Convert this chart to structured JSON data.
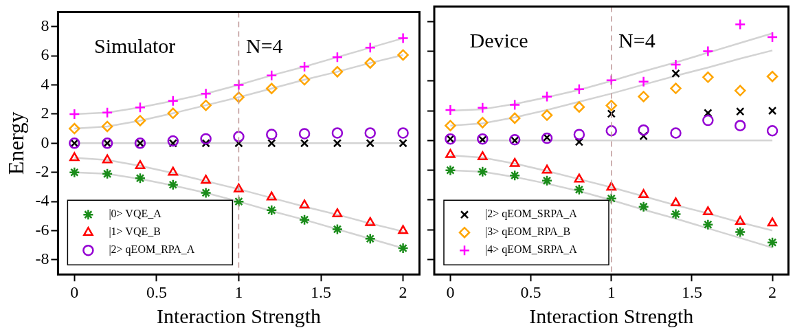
{
  "chart_data": [
    {
      "type": "scatter",
      "xlabel": "Interaction Strength",
      "ylabel": "Energy",
      "annotations": [
        "Simulator",
        "N=4"
      ],
      "x": [
        0,
        0.2,
        0.4,
        0.6,
        0.8,
        1.0,
        1.2,
        1.4,
        1.6,
        1.8,
        2.0
      ],
      "xlim": [
        -0.1,
        2.1
      ],
      "xticks": [
        0,
        0.5,
        1,
        1.5,
        2
      ],
      "ylim": [
        -9,
        9
      ],
      "yticks": [
        -8,
        -6,
        -4,
        -2,
        0,
        2,
        4,
        6,
        8
      ],
      "grid": false,
      "legend": "bottom left",
      "ref_lines": [
        {
          "axis": "x",
          "value": 1,
          "color": "#c09a9a",
          "line_style": "dashed"
        }
      ],
      "series": [
        {
          "type": "line",
          "color": "#d3d3d3",
          "marker": "none",
          "values": [
            2.0,
            2.1,
            2.45,
            2.9,
            3.4,
            4.0,
            4.65,
            5.25,
            5.9,
            6.55,
            7.2
          ]
        },
        {
          "type": "line",
          "color": "#d3d3d3",
          "marker": "none",
          "values": [
            1.0,
            1.15,
            1.55,
            2.05,
            2.6,
            3.15,
            3.75,
            4.35,
            4.9,
            5.5,
            6.05
          ]
        },
        {
          "type": "line",
          "color": "#d3d3d3",
          "marker": "none",
          "values": [
            0,
            0,
            0,
            0,
            0,
            0,
            0,
            0,
            0,
            0,
            0
          ]
        },
        {
          "type": "line",
          "color": "#d3d3d3",
          "marker": "none",
          "values": [
            -1.0,
            -1.15,
            -1.55,
            -2.05,
            -2.6,
            -3.15,
            -3.75,
            -4.35,
            -4.9,
            -5.5,
            -6.05
          ]
        },
        {
          "type": "line",
          "color": "#d3d3d3",
          "marker": "none",
          "values": [
            -2.0,
            -2.1,
            -2.45,
            -2.9,
            -3.4,
            -4.0,
            -4.65,
            -5.25,
            -5.9,
            -6.55,
            -7.2
          ]
        },
        {
          "name": "|0> VQE_A",
          "color": "#1a8c1a",
          "marker": "cross",
          "values": [
            -2.0,
            -2.1,
            -2.4,
            -2.85,
            -3.4,
            -4.0,
            -4.6,
            -5.25,
            -5.9,
            -6.55,
            -7.2
          ]
        },
        {
          "name": "|1> VQE_B",
          "color": "#ff0000",
          "marker": "triangle",
          "values": [
            -1.0,
            -1.15,
            -1.55,
            -2.0,
            -2.55,
            -3.15,
            -3.7,
            -4.25,
            -4.85,
            -5.45,
            -6.0
          ]
        },
        {
          "name": "|2> qEOM_RPA_A",
          "color": "#9400d3",
          "marker": "circle",
          "values": [
            0,
            0,
            0,
            0.15,
            0.3,
            0.45,
            0.6,
            0.65,
            0.7,
            0.7,
            0.7
          ]
        },
        {
          "color": "#000000",
          "marker": "x",
          "values": [
            0,
            0,
            0,
            0,
            0,
            0,
            0,
            0,
            0,
            0,
            0
          ]
        },
        {
          "color": "#ffa500",
          "marker": "diamond",
          "values": [
            1.0,
            1.15,
            1.55,
            2.05,
            2.6,
            3.15,
            3.75,
            4.35,
            4.9,
            5.5,
            6.05
          ]
        },
        {
          "color": "#ff00ff",
          "marker": "plus",
          "values": [
            2.0,
            2.1,
            2.45,
            2.9,
            3.4,
            4.0,
            4.65,
            5.25,
            5.9,
            6.55,
            7.2
          ]
        }
      ]
    },
    {
      "type": "scatter",
      "xlabel": "Interaction Strength",
      "annotations": [
        "Device",
        "N=4"
      ],
      "tick_labels": "x",
      "x": [
        0,
        0.2,
        0.4,
        0.6,
        0.8,
        1.0,
        1.2,
        1.4,
        1.6,
        1.8,
        2.0
      ],
      "xlim": [
        -0.1,
        2.1
      ],
      "xticks": [
        0,
        0.5,
        1,
        1.5,
        2
      ],
      "ylim": [
        -9,
        9
      ],
      "yticks": [
        -8,
        -6,
        -4,
        -2,
        0,
        2,
        4,
        6,
        8
      ],
      "grid": false,
      "legend": "bottom left",
      "ref_lines": [
        {
          "axis": "x",
          "value": 1,
          "color": "#c09a9a",
          "line_style": "dashed"
        }
      ],
      "series": [
        {
          "type": "line",
          "color": "#d3d3d3",
          "marker": "none",
          "values": [
            2.0,
            2.1,
            2.45,
            2.9,
            3.4,
            4.0,
            4.65,
            5.25,
            5.9,
            6.55,
            7.2
          ]
        },
        {
          "type": "line",
          "color": "#d3d3d3",
          "marker": "none",
          "values": [
            1.0,
            1.15,
            1.55,
            2.05,
            2.6,
            3.15,
            3.75,
            4.35,
            4.9,
            5.5,
            6.05
          ]
        },
        {
          "type": "line",
          "color": "#d3d3d3",
          "marker": "none",
          "values": [
            0,
            0,
            0,
            0,
            0,
            0,
            0,
            0,
            0,
            0,
            0
          ]
        },
        {
          "type": "line",
          "color": "#d3d3d3",
          "marker": "none",
          "values": [
            -1.0,
            -1.15,
            -1.55,
            -2.05,
            -2.6,
            -3.15,
            -3.75,
            -4.35,
            -4.9,
            -5.5,
            -6.05
          ]
        },
        {
          "type": "line",
          "color": "#d3d3d3",
          "marker": "none",
          "values": [
            -2.0,
            -2.1,
            -2.45,
            -2.9,
            -3.4,
            -4.0,
            -4.65,
            -5.25,
            -5.9,
            -6.55,
            -7.2
          ]
        },
        {
          "color": "#1a8c1a",
          "marker": "cross",
          "values": [
            -2.0,
            -2.1,
            -2.35,
            -2.7,
            -3.3,
            -3.9,
            -4.45,
            -4.95,
            -5.65,
            -6.15,
            -6.85
          ]
        },
        {
          "color": "#ff0000",
          "marker": "triangle",
          "values": [
            -0.95,
            -1.1,
            -1.55,
            -2.0,
            -2.6,
            -3.15,
            -3.65,
            -4.2,
            -4.8,
            -5.45,
            -5.55
          ]
        },
        {
          "color": "#9400d3",
          "marker": "circle",
          "values": [
            0.1,
            0.1,
            0.05,
            0.15,
            0.4,
            0.65,
            0.7,
            0.5,
            1.35,
            1.0,
            0.65
          ]
        },
        {
          "name": "|2> qEOM_SRPA_A",
          "color": "#000000",
          "marker": "x",
          "values": [
            0.1,
            0.05,
            0,
            0.2,
            -0.1,
            1.8,
            0.3,
            4.5,
            1.85,
            1.95,
            2.0
          ]
        },
        {
          "name": "|3> qEOM_RPA_B",
          "color": "#ffa500",
          "marker": "diamond",
          "values": [
            1.0,
            1.2,
            1.5,
            1.7,
            2.25,
            2.35,
            2.95,
            3.5,
            4.25,
            3.35,
            4.3
          ]
        },
        {
          "name": "|4> qEOM_SRPA_A",
          "color": "#ff00ff",
          "marker": "plus",
          "values": [
            2.05,
            2.2,
            2.4,
            2.95,
            3.45,
            4.05,
            3.95,
            5.1,
            6.0,
            7.8,
            6.95
          ]
        }
      ]
    }
  ]
}
